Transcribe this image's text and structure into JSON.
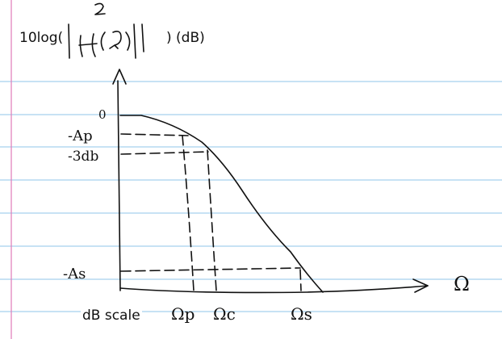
{
  "page": {
    "colors": {
      "ruled_line": "#8fc6e8",
      "margin_line": "#e07ab8",
      "ink": "#111111"
    }
  },
  "axis": {
    "ylabel_typed_left": "10log(",
    "ylabel_typed_right": ") (dB)",
    "ylabel_handwritten": "|H(Ω)|²",
    "scale_note": "dB scale",
    "y_tick_labels": [
      "0",
      "-Ap",
      "-3db",
      "-As"
    ],
    "x_tick_labels": [
      "Ωp",
      "Ωc",
      "Ωs"
    ],
    "x_axis_label": "Ω"
  }
}
